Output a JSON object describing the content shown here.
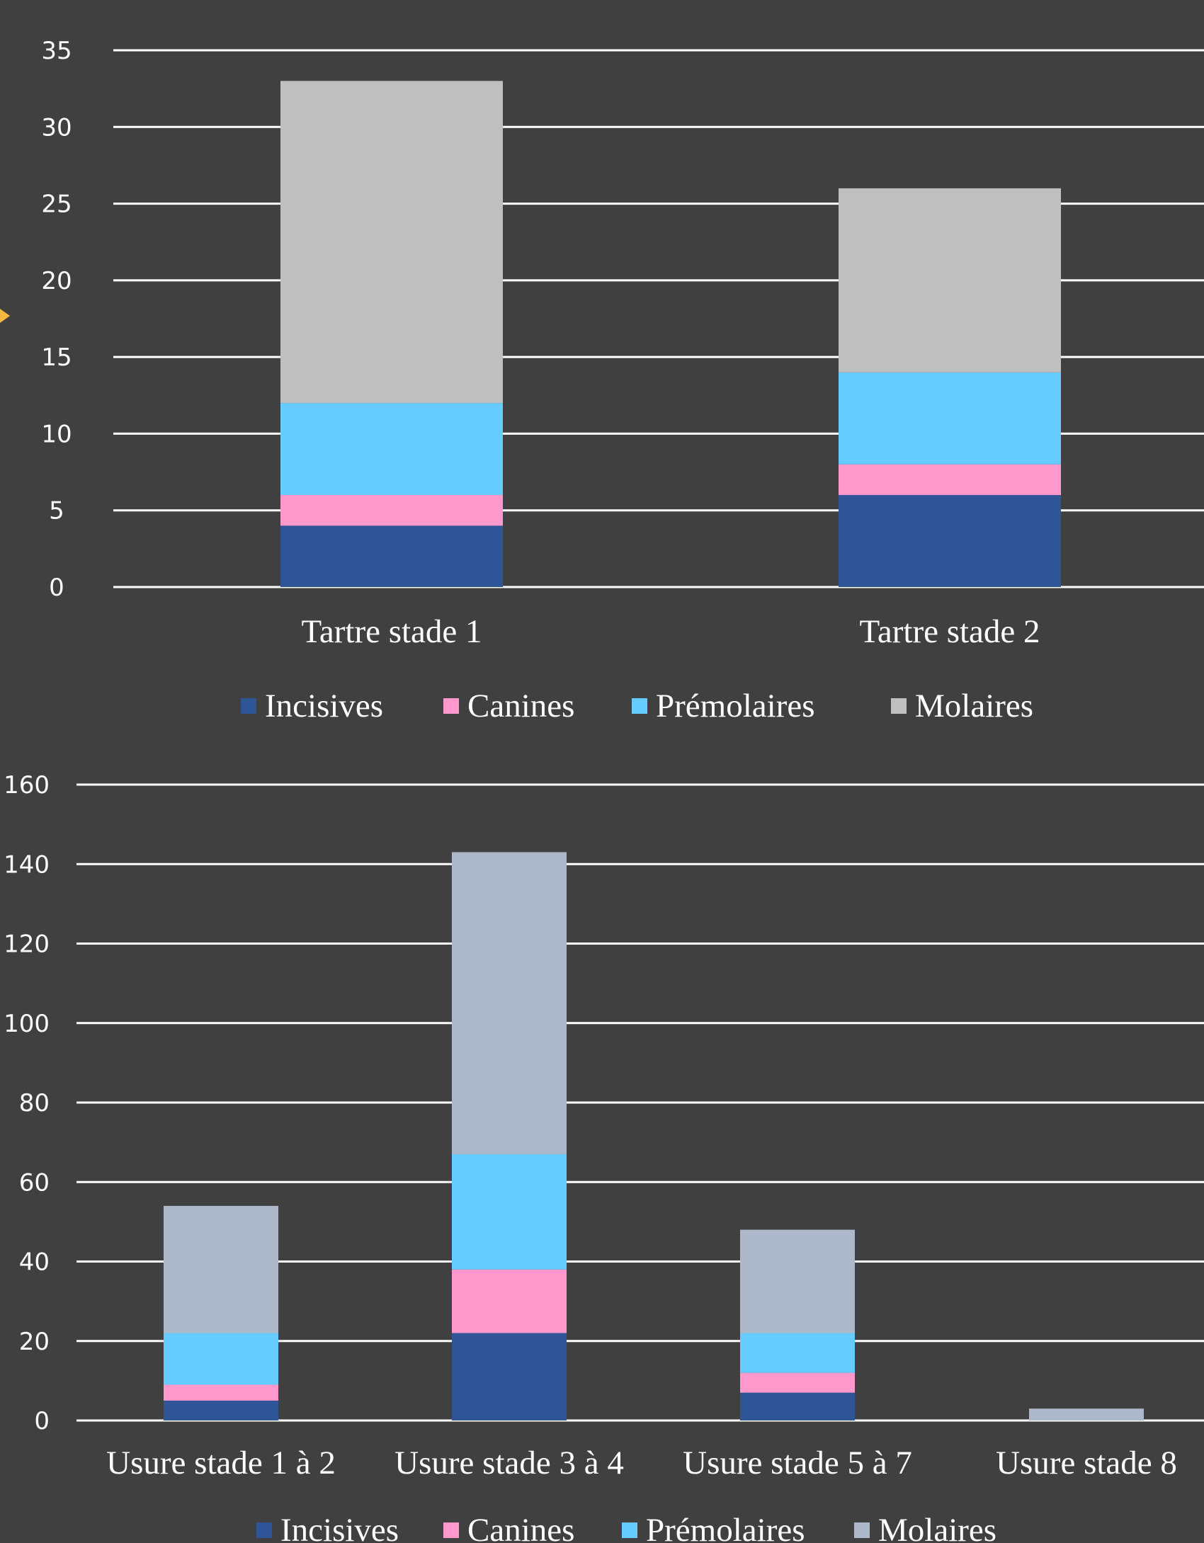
{
  "chart_data": [
    {
      "type": "bar",
      "stacked": true,
      "categories": [
        "Tartre stade 1",
        "Tartre stade 2"
      ],
      "series": [
        {
          "name": "Incisives",
          "values": [
            4,
            6
          ]
        },
        {
          "name": "Canines",
          "values": [
            2,
            2
          ]
        },
        {
          "name": "Prémolaires",
          "values": [
            6,
            6
          ]
        },
        {
          "name": "Molaires",
          "values": [
            21,
            12
          ]
        }
      ],
      "colors": [
        "#2f5597",
        "#ff99cc",
        "#66ccff",
        "#bfbfbf"
      ],
      "yticks": [
        "0",
        "5",
        "10",
        "15",
        "20",
        "25",
        "30",
        "35"
      ],
      "ylim": [
        0,
        35
      ],
      "grid": true,
      "legend": "bottom"
    },
    {
      "type": "bar",
      "stacked": true,
      "categories": [
        "Usure stade 1 à 2",
        "Usure stade 3 à 4",
        "Usure stade 5 à 7",
        "Usure stade 8"
      ],
      "series": [
        {
          "name": "Incisives",
          "values": [
            5,
            22,
            7,
            0
          ]
        },
        {
          "name": "Canines",
          "values": [
            4,
            16,
            5,
            0
          ]
        },
        {
          "name": "Prémolaires",
          "values": [
            13,
            29,
            10,
            0
          ]
        },
        {
          "name": "Molaires",
          "values": [
            32,
            76,
            26,
            3
          ]
        }
      ],
      "colors": [
        "#2f5597",
        "#ff99cc",
        "#66ccff",
        "#adb9ca"
      ],
      "yticks": [
        "0",
        "20",
        "40",
        "60",
        "80",
        "100",
        "120",
        "140",
        "160"
      ],
      "ylim": [
        0,
        160
      ],
      "grid": true,
      "legend": "bottom"
    }
  ]
}
